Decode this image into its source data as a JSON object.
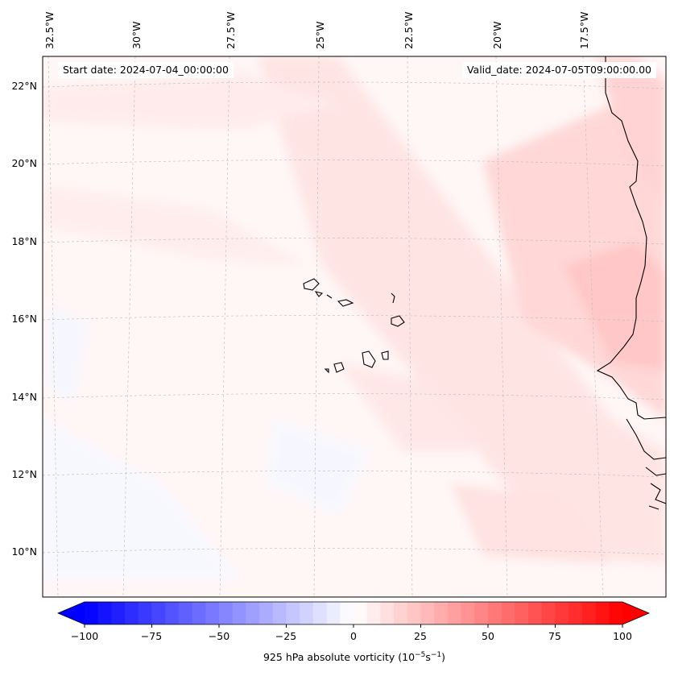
{
  "map": {
    "start_date": "Start date: 2024-07-04_00:00:00",
    "valid_date": "Valid_date: 2024-07-05T09:00:00.00",
    "lon_labels": [
      "32.5°W",
      "30°W",
      "27.5°W",
      "25°W",
      "22.5°W",
      "20°W",
      "17.5°W"
    ],
    "lat_labels": [
      "22°N",
      "20°N",
      "18°N",
      "16°N",
      "14°N",
      "12°N",
      "10°N"
    ],
    "field": "925 hPa absolute vorticity",
    "colors": {
      "coast": "#000000",
      "grid": "#bbbbbb",
      "neg": "#0000ff",
      "pos": "#ff0000"
    }
  },
  "colorbar": {
    "label": "925 hPa absolute vorticity (10",
    "label_exp1": "−5",
    "label_mid": "s",
    "label_exp2": "−1",
    "label_end": ")",
    "ticks": [
      "−100",
      "−75",
      "−50",
      "−25",
      "0",
      "25",
      "50",
      "75",
      "100"
    ],
    "range": [
      -100,
      100
    ]
  }
}
